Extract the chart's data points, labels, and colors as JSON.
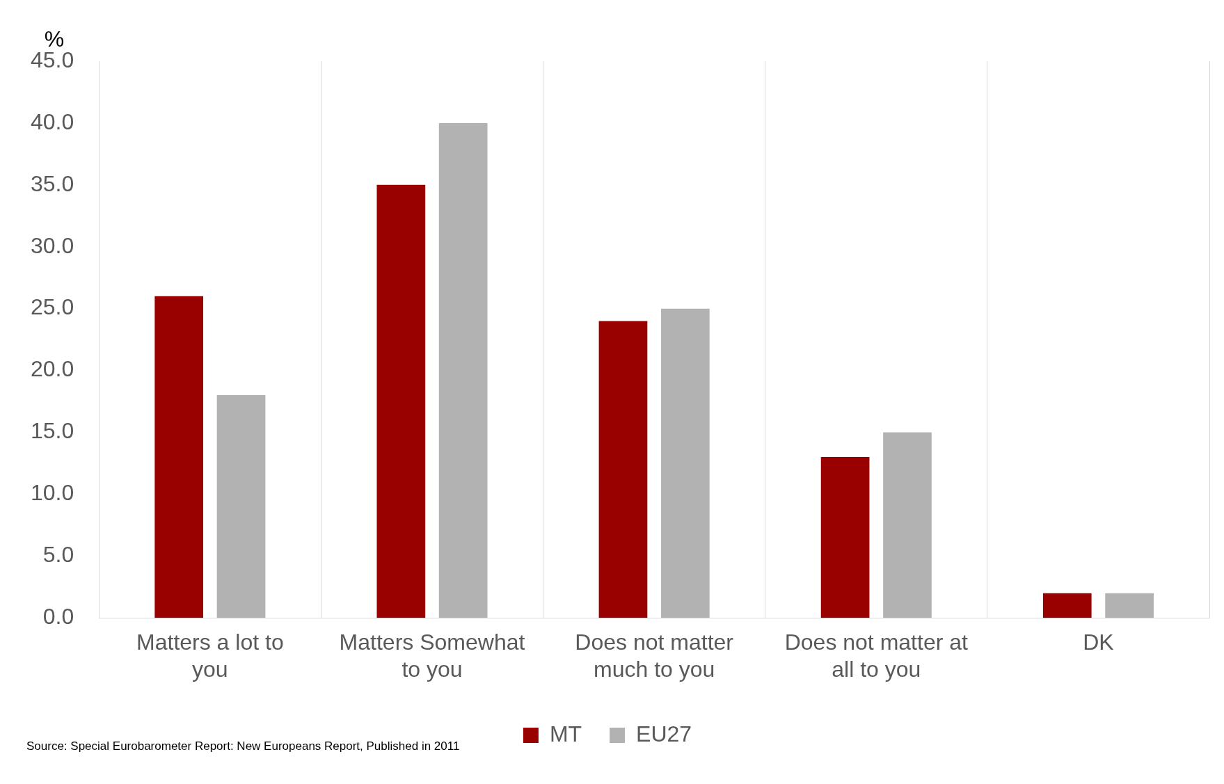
{
  "chart_data": {
    "type": "bar",
    "ylabel": "%",
    "categories": [
      "Matters a lot to you",
      "Matters Somewhat to you",
      "Does not matter much to you",
      "Does not matter at all to you",
      "DK"
    ],
    "series": [
      {
        "name": "MT",
        "color": "#990000",
        "values": [
          26,
          35,
          24,
          13,
          2
        ]
      },
      {
        "name": "EU27",
        "color": "#b2b2b2",
        "values": [
          18,
          40,
          25,
          15,
          2
        ]
      }
    ],
    "ylim": [
      0,
      45
    ],
    "yticks": [
      {
        "value": 0,
        "label": "0.0"
      },
      {
        "value": 5,
        "label": "5.0"
      },
      {
        "value": 10,
        "label": "10.0"
      },
      {
        "value": 15,
        "label": "15.0"
      },
      {
        "value": 20,
        "label": "20.0"
      },
      {
        "value": 25,
        "label": "25.0"
      },
      {
        "value": 30,
        "label": "30.0"
      },
      {
        "value": 35,
        "label": "35.0"
      },
      {
        "value": 40,
        "label": "40.0"
      },
      {
        "value": 45,
        "label": "45.0"
      }
    ],
    "grid": "x",
    "legend": "bottom",
    "annotations": [
      "Source: Special Eurobarometer Report: New Europeans Report, Published in 2011"
    ]
  }
}
